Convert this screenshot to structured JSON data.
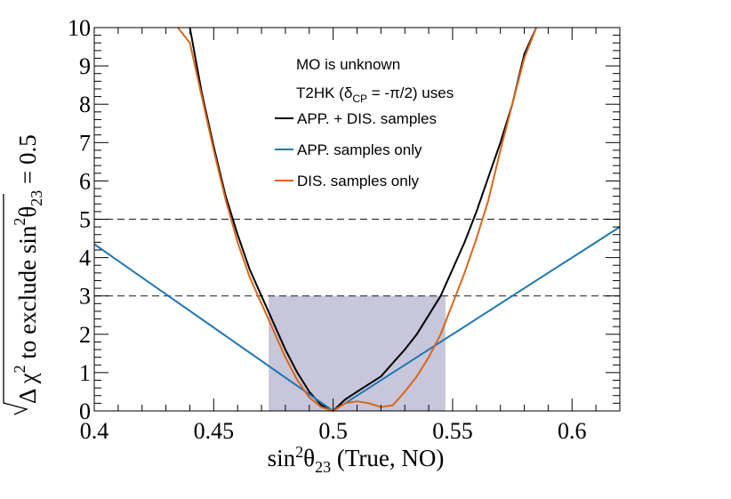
{
  "chart_data": {
    "type": "line",
    "xlabel": {
      "base": "sin",
      "sup": "2",
      "theta": "θ",
      "sub": "23",
      "rest": " (True, NO)"
    },
    "ylabel": {
      "delta": "Δ",
      "chi": "χ",
      "sup": "2",
      "mid": " to exclude sin",
      "sup2": "2",
      "theta": "θ",
      "sub": "23",
      "tail": " = 0.5"
    },
    "xlim": [
      0.4,
      0.62
    ],
    "ylim": [
      0,
      10
    ],
    "x_ticks": [
      0.4,
      0.45,
      0.5,
      0.55,
      0.6
    ],
    "x_tick_labels": [
      "0.4",
      "0.45",
      "0.5",
      "0.55",
      "0.6"
    ],
    "y_ticks": [
      0,
      1,
      2,
      3,
      4,
      5,
      6,
      7,
      8,
      9,
      10
    ],
    "y_tick_labels": [
      "0",
      "1",
      "2",
      "3",
      "4",
      "5",
      "6",
      "7",
      "8",
      "9",
      "10"
    ],
    "reference_lines": [
      3,
      5
    ],
    "shaded_region": {
      "x": [
        0.473,
        0.547
      ],
      "y": [
        0,
        3
      ]
    },
    "legend_placement": "top-center",
    "annotations": {
      "line1": "MO is unknown",
      "line2_prefix": "T2HK (δ",
      "line2_sub": "CP",
      "line2_suffix": " = -π/2) uses"
    },
    "series": [
      {
        "name": "APP. + DIS. samples",
        "color": "#000000",
        "x": [
          0.44,
          0.445,
          0.45,
          0.455,
          0.46,
          0.465,
          0.47,
          0.475,
          0.48,
          0.485,
          0.49,
          0.495,
          0.5,
          0.505,
          0.51,
          0.515,
          0.52,
          0.525,
          0.53,
          0.535,
          0.54,
          0.545,
          0.55,
          0.555,
          0.56,
          0.565,
          0.57,
          0.575,
          0.58,
          0.585
        ],
        "y": [
          10.0,
          8.3,
          6.9,
          5.6,
          4.6,
          3.7,
          3.0,
          2.3,
          1.6,
          1.0,
          0.5,
          0.15,
          0.0,
          0.3,
          0.5,
          0.7,
          0.9,
          1.25,
          1.6,
          2.0,
          2.5,
          3.0,
          3.7,
          4.4,
          5.2,
          6.1,
          7.0,
          8.0,
          9.3,
          10.0
        ]
      },
      {
        "name": "APP. samples only",
        "color": "#1f77b4",
        "x": [
          0.4,
          0.5,
          0.62
        ],
        "y": [
          4.35,
          0.0,
          4.8
        ]
      },
      {
        "name": "DIS. samples only",
        "color": "#d9661a",
        "x": [
          0.435,
          0.44,
          0.445,
          0.45,
          0.455,
          0.46,
          0.465,
          0.47,
          0.475,
          0.48,
          0.485,
          0.49,
          0.495,
          0.5,
          0.505,
          0.51,
          0.515,
          0.52,
          0.525,
          0.53,
          0.535,
          0.54,
          0.545,
          0.55,
          0.555,
          0.56,
          0.565,
          0.57,
          0.575,
          0.58,
          0.585
        ],
        "y": [
          10.0,
          9.6,
          8.2,
          6.8,
          5.5,
          4.4,
          3.5,
          2.8,
          2.1,
          1.4,
          0.8,
          0.35,
          0.1,
          0.0,
          0.2,
          0.25,
          0.2,
          0.1,
          0.15,
          0.5,
          0.9,
          1.4,
          2.0,
          2.8,
          3.6,
          4.5,
          5.5,
          6.8,
          8.0,
          9.2,
          10.0
        ]
      }
    ]
  }
}
